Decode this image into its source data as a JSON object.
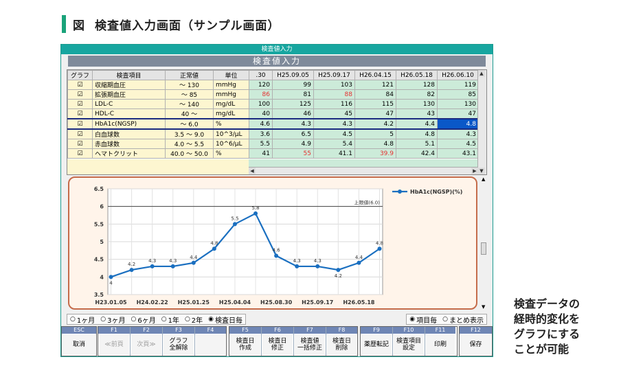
{
  "figure": {
    "label": "図",
    "title": "検査値入力画面（サンプル画面）",
    "caption_lines": [
      "検査データの",
      "経時的変化を",
      "グラフにする",
      "ことが可能"
    ]
  },
  "window": {
    "title": "検査値入力",
    "screen_title": "検査値入力"
  },
  "table": {
    "headers": {
      "graph": "グラフ",
      "item": "検査項目",
      "normal": "正常値",
      "unit": "単位"
    },
    "date_columns": [
      ".30",
      "H25.09.05",
      "H25.09.17",
      "H26.04.15",
      "H26.05.18",
      "H26.06.10"
    ],
    "rows": [
      {
        "check": "☑",
        "item": "収縮期血圧",
        "normal": "～ 130",
        "unit": "mmHg",
        "values": [
          "120",
          "99",
          "103",
          "121",
          "128",
          "119"
        ],
        "red": []
      },
      {
        "check": "☑",
        "item": "拡張期血圧",
        "normal": "～ 85",
        "unit": "mmHg",
        "values": [
          "86",
          "81",
          "88",
          "84",
          "82",
          "85"
        ],
        "red": [
          0,
          2
        ]
      },
      {
        "check": "☑",
        "item": "LDL-C",
        "normal": "～ 140",
        "unit": "mg/dL",
        "values": [
          "100",
          "125",
          "116",
          "115",
          "130",
          "130"
        ],
        "red": []
      },
      {
        "check": "☑",
        "item": "HDL-C",
        "normal": "40 ～",
        "unit": "mg/dL",
        "values": [
          "40",
          "46",
          "45",
          "47",
          "43",
          "47"
        ],
        "red": []
      },
      {
        "check": "☑",
        "item": "HbA1c(NGSP)",
        "normal": "～ 6.0",
        "unit": "%",
        "values": [
          "4.6",
          "4.3",
          "4.3",
          "4.2",
          "4.4",
          "4.8"
        ],
        "red": [],
        "selected": true
      },
      {
        "check": "☑",
        "item": "白血球数",
        "normal": "3.5 ～ 9.0",
        "unit": "10^3/μL",
        "values": [
          "3.6",
          "6.5",
          "4.5",
          "5",
          "4.8",
          "4.3"
        ],
        "red": []
      },
      {
        "check": "☑",
        "item": "赤血球数",
        "normal": "4.0 ～ 5.5",
        "unit": "10^6/μL",
        "values": [
          "5.5",
          "4.9",
          "5.4",
          "4.8",
          "5.1",
          "4.5"
        ],
        "red": []
      },
      {
        "check": "☑",
        "item": "ヘマトクリット",
        "normal": "40.0 ～ 50.0",
        "unit": "%",
        "values": [
          "41",
          "55",
          "41.1",
          "39.9",
          "42.4",
          "43.1"
        ],
        "red": [
          1,
          3
        ]
      }
    ]
  },
  "chart_data": {
    "type": "line",
    "title": "",
    "series": [
      {
        "name": "HbA1c(NGSP)(%)",
        "values": [
          4,
          4.2,
          4.3,
          4.3,
          4.4,
          4.8,
          5.5,
          5.8,
          4.6,
          4.3,
          4.3,
          4.2,
          4.4,
          4.8
        ],
        "labels": [
          "4",
          "4.2",
          "4.3",
          "4.3",
          "4.4",
          "4.8",
          "5.5",
          "5.8",
          "4.6",
          "4.3",
          "4.3",
          "4.2",
          "4.4",
          "4.8"
        ]
      }
    ],
    "xtick_labels": [
      "H23.01.05",
      "H24.02.22",
      "H25.01.25",
      "H25.04.04",
      "H25.08.30",
      "H25.09.17",
      "H26.05.18"
    ],
    "ylim": [
      3.5,
      6.5
    ],
    "yticks": [
      "3.5",
      "4",
      "4.5",
      "5",
      "5.5",
      "6",
      "6.5"
    ],
    "reference_line": {
      "value": 6,
      "label": "上限値(6.0)"
    },
    "legend_position": "top-right",
    "grid": true,
    "line_color": "#1a6fc0"
  },
  "modes": {
    "range_options": [
      "1ヶ月",
      "3ヶ月",
      "6ヶ月",
      "1年",
      "2年",
      "検査日毎"
    ],
    "range_selected": "検査日毎",
    "view_options": [
      "項目毎",
      "まとめ表示"
    ],
    "view_selected": "項目毎"
  },
  "fkeys": {
    "esc": {
      "num": "ESC",
      "label": "取消"
    },
    "f1": {
      "num": "F1",
      "label": "≪前頁"
    },
    "f2": {
      "num": "F2",
      "label": "次頁≫"
    },
    "f3": {
      "num": "F3",
      "label": "グラフ\n全解除"
    },
    "f4": {
      "num": "F4",
      "label": ""
    },
    "f5": {
      "num": "F5",
      "label": "検査日\n作成"
    },
    "f6": {
      "num": "F6",
      "label": "検査日\n修正"
    },
    "f7": {
      "num": "F7",
      "label": "検査値\n一括修正"
    },
    "f8": {
      "num": "F8",
      "label": "検査日\n削除"
    },
    "f9": {
      "num": "F9",
      "label": "薬歴転記"
    },
    "f10": {
      "num": "F10",
      "label": "検査項目\n設定"
    },
    "f11": {
      "num": "F11",
      "label": "印刷"
    },
    "f12": {
      "num": "F12",
      "label": "保存"
    }
  }
}
